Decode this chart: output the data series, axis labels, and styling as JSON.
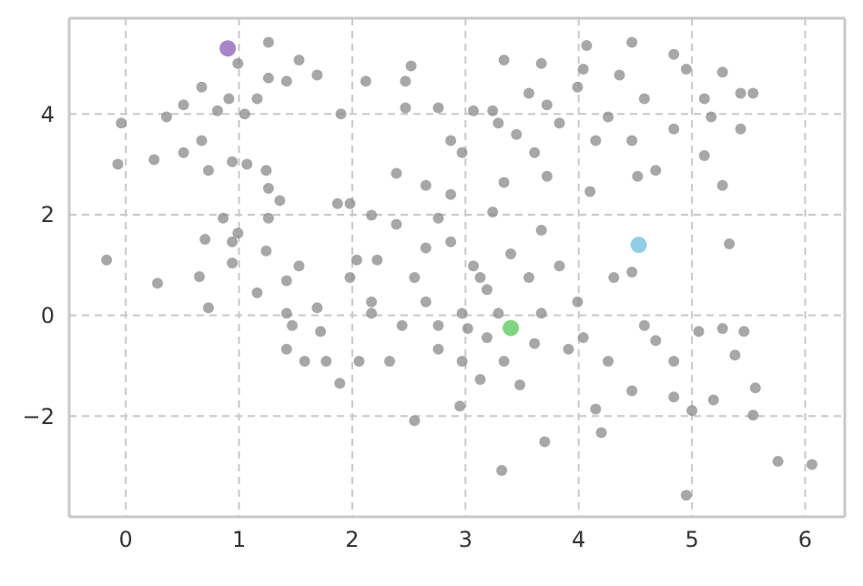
{
  "chart_data": {
    "type": "scatter",
    "xlim": [
      -0.5,
      6.35
    ],
    "ylim": [
      -4,
      5.9
    ],
    "xticks": [
      0,
      1,
      2,
      3,
      4,
      5,
      6
    ],
    "yticks": [
      -2,
      0,
      2,
      4
    ],
    "grid": true,
    "marker": "circle",
    "series": [
      {
        "color": "#8a8a8a",
        "x": [
          -0.07,
          -0.04,
          -0.17,
          0.28,
          0.25,
          0.36,
          0.51,
          0.67,
          0.81,
          0.91,
          1.05,
          1.16,
          1.26,
          1.42,
          1.53,
          1.69,
          1.9,
          2.12,
          0.99,
          1.26,
          0.67,
          0.94,
          1.07,
          0.51,
          1.24,
          0.73,
          1.26,
          0.86,
          0.7,
          0.99,
          0.94,
          0.73,
          0.65,
          0.94,
          1.16,
          1.24,
          1.42,
          1.36,
          1.26,
          1.42,
          1.58,
          1.42,
          1.69,
          1.77,
          1.72,
          1.53,
          1.89,
          1.87,
          1.98,
          2.04,
          1.98,
          2.06,
          2.17,
          2.39,
          2.47,
          2.52,
          2.47,
          2.39,
          2.65,
          2.76,
          2.55,
          2.33,
          2.44,
          2.65,
          2.76,
          2.65,
          2.87,
          2.97,
          2.97,
          3.07,
          2.97,
          2.95,
          3.13,
          3.29,
          3.19,
          3.24,
          3.32,
          3.34,
          3.48,
          3.24,
          3.34,
          3.45,
          3.61,
          3.56,
          3.67,
          3.83,
          3.72,
          3.67,
          3.67,
          3.61,
          3.7,
          3.83,
          3.91,
          3.99,
          4.04,
          4.07,
          4.15,
          4.26,
          4.1,
          4.15,
          4.2,
          4.26,
          4.47,
          4.31,
          4.47,
          4.36,
          4.47,
          4.58,
          4.52,
          4.68,
          4.47,
          4.84,
          4.95,
          4.84,
          5.11,
          5.17,
          5.11,
          5.43,
          5.54,
          5.43,
          5.27,
          5.27,
          5.33,
          4.58,
          4.68,
          4.84,
          4.84,
          4.95,
          5.0,
          5.06,
          5.19,
          5.27,
          5.46,
          5.56,
          5.54,
          5.38,
          5.76,
          6.06,
          4.04,
          3.99,
          3.72,
          3.29,
          3.07,
          2.87,
          3.34,
          2.76,
          2.17,
          2.22,
          2.55,
          2.87,
          3.13,
          3.4,
          3.56,
          3.19,
          3.02,
          2.76,
          2.17,
          1.47
        ],
        "values": [
          3.0,
          3.82,
          1.1,
          0.64,
          3.09,
          3.94,
          4.18,
          4.53,
          4.06,
          4.3,
          4.0,
          4.3,
          4.71,
          4.65,
          5.07,
          4.77,
          4.0,
          4.65,
          5.0,
          5.42,
          3.47,
          3.05,
          3.0,
          3.23,
          2.88,
          2.88,
          2.52,
          1.93,
          1.51,
          1.63,
          1.46,
          0.15,
          0.77,
          1.04,
          0.45,
          1.28,
          0.69,
          2.28,
          1.93,
          0.04,
          -0.91,
          -0.67,
          0.15,
          -0.91,
          -0.32,
          0.98,
          -1.35,
          2.22,
          2.22,
          1.1,
          0.75,
          -0.91,
          0.27,
          1.81,
          4.65,
          4.95,
          4.12,
          2.82,
          2.58,
          4.12,
          -2.09,
          -0.91,
          -0.2,
          0.27,
          -0.67,
          1.34,
          2.4,
          3.23,
          0.04,
          0.98,
          -0.91,
          -1.8,
          -1.27,
          0.04,
          0.51,
          2.05,
          -3.08,
          -0.91,
          -1.38,
          4.06,
          5.07,
          3.59,
          3.23,
          4.41,
          5.0,
          3.82,
          2.76,
          1.69,
          0.04,
          -0.56,
          -2.51,
          0.98,
          -0.67,
          0.27,
          4.89,
          5.36,
          3.47,
          3.94,
          2.46,
          -1.86,
          -2.33,
          -0.91,
          -1.5,
          0.75,
          0.86,
          4.77,
          5.42,
          4.3,
          2.76,
          2.88,
          3.47,
          5.18,
          4.89,
          3.7,
          4.3,
          3.94,
          3.17,
          4.41,
          4.41,
          3.7,
          4.83,
          2.58,
          1.42,
          -0.2,
          -0.5,
          -0.91,
          -1.62,
          -3.57,
          -1.89,
          -0.32,
          -1.68,
          -0.26,
          -0.32,
          -1.44,
          -1.98,
          -0.79,
          -2.9,
          -2.96,
          -0.44,
          4.53,
          4.18,
          3.82,
          4.06,
          3.47,
          2.64,
          1.93,
          1.99,
          1.1,
          0.75,
          1.46,
          0.75,
          1.22,
          0.75,
          -0.44,
          -0.26,
          -0.2,
          0.04,
          -0.2
        ]
      },
      {
        "color": "#8e5bb5",
        "x": [
          0.9
        ],
        "values": [
          5.3
        ]
      },
      {
        "color": "#6bbde0",
        "x": [
          4.53
        ],
        "values": [
          1.4
        ]
      },
      {
        "color": "#55c855",
        "x": [
          3.4
        ],
        "values": [
          -0.25
        ]
      }
    ]
  }
}
